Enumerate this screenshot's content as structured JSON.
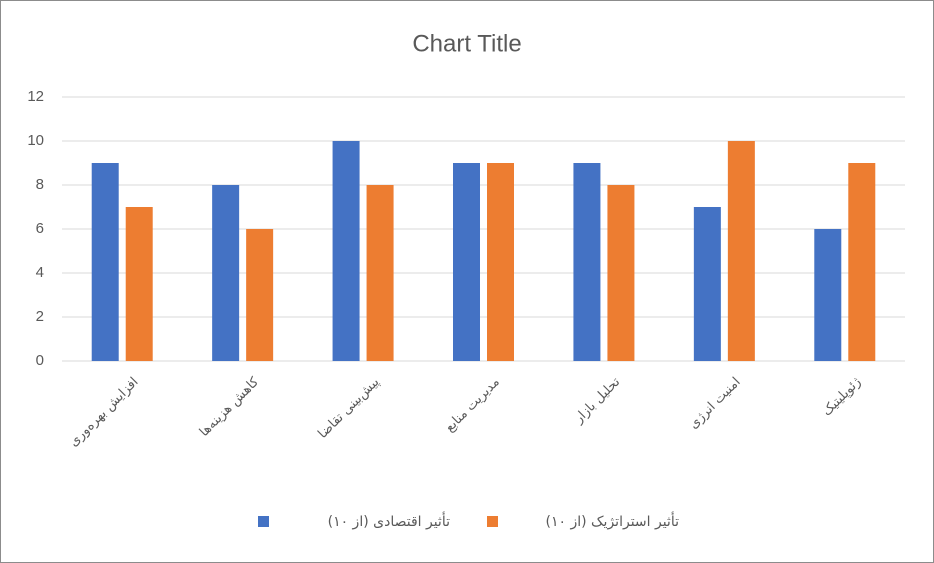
{
  "chart_data": {
    "type": "bar",
    "title": "Chart Title",
    "categories": [
      "افزایش بهره‌وری",
      "کاهش هزینه‌ها",
      "پیش‌بینی تقاضا",
      "مدیریت منابع",
      "تحلیل بازار",
      "امنیت انرژی",
      "ژئوپلیتیک"
    ],
    "series": [
      {
        "name": "تأثیر اقتصادی (از ۱۰)",
        "color": "#4472c4",
        "values": [
          9,
          8,
          10,
          9,
          9,
          7,
          6
        ]
      },
      {
        "name": "تأثیر استراتژیک (از ۱۰)",
        "color": "#ed7d31",
        "values": [
          7,
          6,
          8,
          9,
          8,
          10,
          9
        ]
      }
    ],
    "ylim": [
      0,
      12
    ],
    "yticks": [
      0,
      2,
      4,
      6,
      8,
      10,
      12
    ],
    "grid": true,
    "legend": "bottom"
  }
}
